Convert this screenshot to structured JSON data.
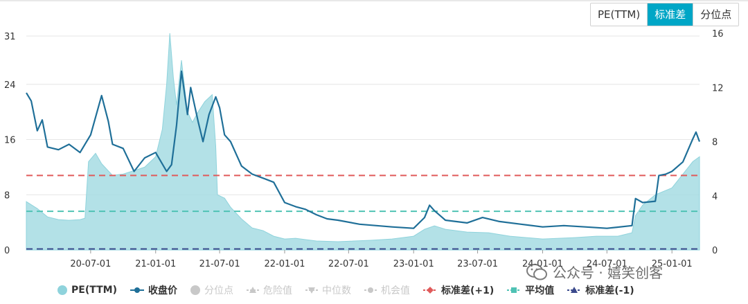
{
  "tabs": [
    {
      "label": "PE(TTM)",
      "active": false
    },
    {
      "label": "标准差",
      "active": true
    },
    {
      "label": "分位点",
      "active": false
    }
  ],
  "watermark": "公众号 · 嬉笑创客",
  "legend": [
    {
      "label": "PE(TTM)",
      "color": "#8fd3dc",
      "marker": "circle",
      "enabled": true
    },
    {
      "label": "收盘价",
      "color": "#1f6f98",
      "marker": "line-dot",
      "enabled": true
    },
    {
      "label": "分位点",
      "color": "#c8c8c8",
      "marker": "circle",
      "enabled": false
    },
    {
      "label": "危险值",
      "color": "#c8c8c8",
      "marker": "line-triangle-up",
      "enabled": false
    },
    {
      "label": "中位数",
      "color": "#c8c8c8",
      "marker": "line-triangle-down",
      "enabled": false
    },
    {
      "label": "机会值",
      "color": "#c8c8c8",
      "marker": "line-dot",
      "enabled": false
    },
    {
      "label": "标准差(+1)",
      "color": "#e05a5a",
      "marker": "dash-diamond",
      "enabled": true
    },
    {
      "label": "平均值",
      "color": "#4fc2b4",
      "marker": "dash-square",
      "enabled": true
    },
    {
      "label": "标准差(-1)",
      "color": "#3b4a8c",
      "marker": "dash-triangle",
      "enabled": true
    }
  ],
  "chart_data": {
    "type": "line",
    "x_ticks": [
      "20-07-01",
      "21-01-01",
      "21-07-01",
      "22-01-01",
      "22-07-01",
      "23-01-01",
      "23-07-01",
      "24-01-01",
      "24-07-01",
      "25-01-01"
    ],
    "y_left_ticks": [
      "0",
      "8",
      "16",
      "24",
      "31"
    ],
    "y_right_ticks": [
      "0",
      "4",
      "8",
      "12",
      "16"
    ],
    "y_left_range": [
      0,
      31.4
    ],
    "y_right_range": [
      0,
      16
    ],
    "x_range": [
      "2020-01-01",
      "2025-03-20"
    ],
    "grid": true,
    "colors": {
      "pe_fill": "#a6dce3",
      "pe_line": "#8fd3dc",
      "price": "#1f6f98",
      "std_plus1": "#e05a5a",
      "mean": "#4fc2b4",
      "std_minus1": "#3b4a8c"
    },
    "reference_lines": [
      {
        "name": "标准差(+1)",
        "value": 10.8
      },
      {
        "name": "平均值",
        "value": 5.6
      },
      {
        "name": "标准差(-1)",
        "value": 0.15
      }
    ],
    "series": [
      {
        "name": "PE(TTM)",
        "axis": "left",
        "type": "area",
        "points": [
          [
            "2020-01-01",
            7.0
          ],
          [
            "2020-02-01",
            6.0
          ],
          [
            "2020-03-01",
            4.8
          ],
          [
            "2020-04-01",
            4.4
          ],
          [
            "2020-05-01",
            4.3
          ],
          [
            "2020-06-01",
            4.4
          ],
          [
            "2020-06-15",
            4.6
          ],
          [
            "2020-06-25",
            12.8
          ],
          [
            "2020-07-15",
            14.0
          ],
          [
            "2020-08-01",
            12.5
          ],
          [
            "2020-09-01",
            10.8
          ],
          [
            "2020-10-01",
            11.0
          ],
          [
            "2020-11-01",
            11.5
          ],
          [
            "2020-12-01",
            12.0
          ],
          [
            "2021-01-01",
            13.5
          ],
          [
            "2021-01-20",
            17.5
          ],
          [
            "2021-02-01",
            24.0
          ],
          [
            "2021-02-10",
            31.4
          ],
          [
            "2021-02-20",
            25.0
          ],
          [
            "2021-03-01",
            21.0
          ],
          [
            "2021-03-15",
            27.5
          ],
          [
            "2021-04-01",
            20.0
          ],
          [
            "2021-04-15",
            18.5
          ],
          [
            "2021-05-01",
            20.0
          ],
          [
            "2021-05-20",
            21.5
          ],
          [
            "2021-06-10",
            22.5
          ],
          [
            "2021-06-20",
            15.0
          ],
          [
            "2021-06-25",
            8.0
          ],
          [
            "2021-07-15",
            7.5
          ],
          [
            "2021-08-01",
            6.2
          ],
          [
            "2021-09-01",
            4.5
          ],
          [
            "2021-10-01",
            3.2
          ],
          [
            "2021-11-01",
            2.8
          ],
          [
            "2021-12-01",
            2.0
          ],
          [
            "2022-01-01",
            1.6
          ],
          [
            "2022-02-01",
            1.7
          ],
          [
            "2022-03-01",
            1.5
          ],
          [
            "2022-04-01",
            1.3
          ],
          [
            "2022-06-01",
            1.2
          ],
          [
            "2022-09-01",
            1.4
          ],
          [
            "2022-11-01",
            1.6
          ],
          [
            "2023-01-01",
            2.0
          ],
          [
            "2023-02-01",
            3.0
          ],
          [
            "2023-03-01",
            3.5
          ],
          [
            "2023-04-01",
            3.0
          ],
          [
            "2023-06-01",
            2.6
          ],
          [
            "2023-08-01",
            2.5
          ],
          [
            "2023-10-01",
            2.0
          ],
          [
            "2024-01-01",
            1.6
          ],
          [
            "2024-04-01",
            1.8
          ],
          [
            "2024-06-01",
            2.0
          ],
          [
            "2024-08-01",
            2.0
          ],
          [
            "2024-09-10",
            2.5
          ],
          [
            "2024-09-20",
            5.0
          ],
          [
            "2024-10-10",
            6.5
          ],
          [
            "2024-11-15",
            8.0
          ],
          [
            "2025-01-01",
            9.0
          ],
          [
            "2025-02-01",
            11.0
          ],
          [
            "2025-03-01",
            12.8
          ],
          [
            "2025-03-20",
            13.5
          ]
        ]
      },
      {
        "name": "收盘价",
        "axis": "right",
        "type": "line",
        "points": [
          [
            "2020-01-01",
            11.6
          ],
          [
            "2020-01-15",
            11.0
          ],
          [
            "2020-02-01",
            8.8
          ],
          [
            "2020-02-15",
            9.6
          ],
          [
            "2020-03-01",
            7.6
          ],
          [
            "2020-04-01",
            7.4
          ],
          [
            "2020-05-01",
            7.8
          ],
          [
            "2020-06-01",
            7.2
          ],
          [
            "2020-07-01",
            8.5
          ],
          [
            "2020-08-01",
            11.4
          ],
          [
            "2020-08-20",
            9.5
          ],
          [
            "2020-09-01",
            7.8
          ],
          [
            "2020-10-01",
            7.5
          ],
          [
            "2020-11-01",
            5.8
          ],
          [
            "2020-12-01",
            6.8
          ],
          [
            "2021-01-01",
            7.2
          ],
          [
            "2021-02-01",
            5.8
          ],
          [
            "2021-02-15",
            6.3
          ],
          [
            "2021-03-01",
            9.2
          ],
          [
            "2021-03-15",
            13.2
          ],
          [
            "2021-04-01",
            10.0
          ],
          [
            "2021-04-10",
            12.0
          ],
          [
            "2021-05-01",
            9.5
          ],
          [
            "2021-05-15",
            8.0
          ],
          [
            "2021-06-01",
            10.0
          ],
          [
            "2021-06-20",
            11.3
          ],
          [
            "2021-07-01",
            10.5
          ],
          [
            "2021-07-15",
            8.5
          ],
          [
            "2021-08-01",
            8.0
          ],
          [
            "2021-09-01",
            6.2
          ],
          [
            "2021-10-01",
            5.6
          ],
          [
            "2021-11-01",
            5.3
          ],
          [
            "2021-12-01",
            5.0
          ],
          [
            "2022-01-01",
            3.5
          ],
          [
            "2022-02-01",
            3.2
          ],
          [
            "2022-03-01",
            3.0
          ],
          [
            "2022-04-01",
            2.6
          ],
          [
            "2022-05-01",
            2.3
          ],
          [
            "2022-06-01",
            2.2
          ],
          [
            "2022-08-01",
            1.9
          ],
          [
            "2022-11-01",
            1.7
          ],
          [
            "2023-01-01",
            1.6
          ],
          [
            "2023-02-01",
            2.4
          ],
          [
            "2023-02-15",
            3.3
          ],
          [
            "2023-03-01",
            2.9
          ],
          [
            "2023-04-01",
            2.2
          ],
          [
            "2023-06-01",
            2.0
          ],
          [
            "2023-07-15",
            2.4
          ],
          [
            "2023-09-01",
            2.1
          ],
          [
            "2023-11-01",
            1.9
          ],
          [
            "2024-01-01",
            1.7
          ],
          [
            "2024-03-01",
            1.8
          ],
          [
            "2024-05-01",
            1.7
          ],
          [
            "2024-07-01",
            1.6
          ],
          [
            "2024-09-10",
            1.8
          ],
          [
            "2024-09-20",
            3.8
          ],
          [
            "2024-10-10",
            3.5
          ],
          [
            "2024-11-15",
            3.6
          ],
          [
            "2024-11-25",
            5.5
          ],
          [
            "2024-12-15",
            5.6
          ],
          [
            "2025-01-01",
            5.8
          ],
          [
            "2025-02-01",
            6.5
          ],
          [
            "2025-03-01",
            8.2
          ],
          [
            "2025-03-10",
            8.7
          ],
          [
            "2025-03-20",
            8.0
          ]
        ]
      }
    ]
  }
}
